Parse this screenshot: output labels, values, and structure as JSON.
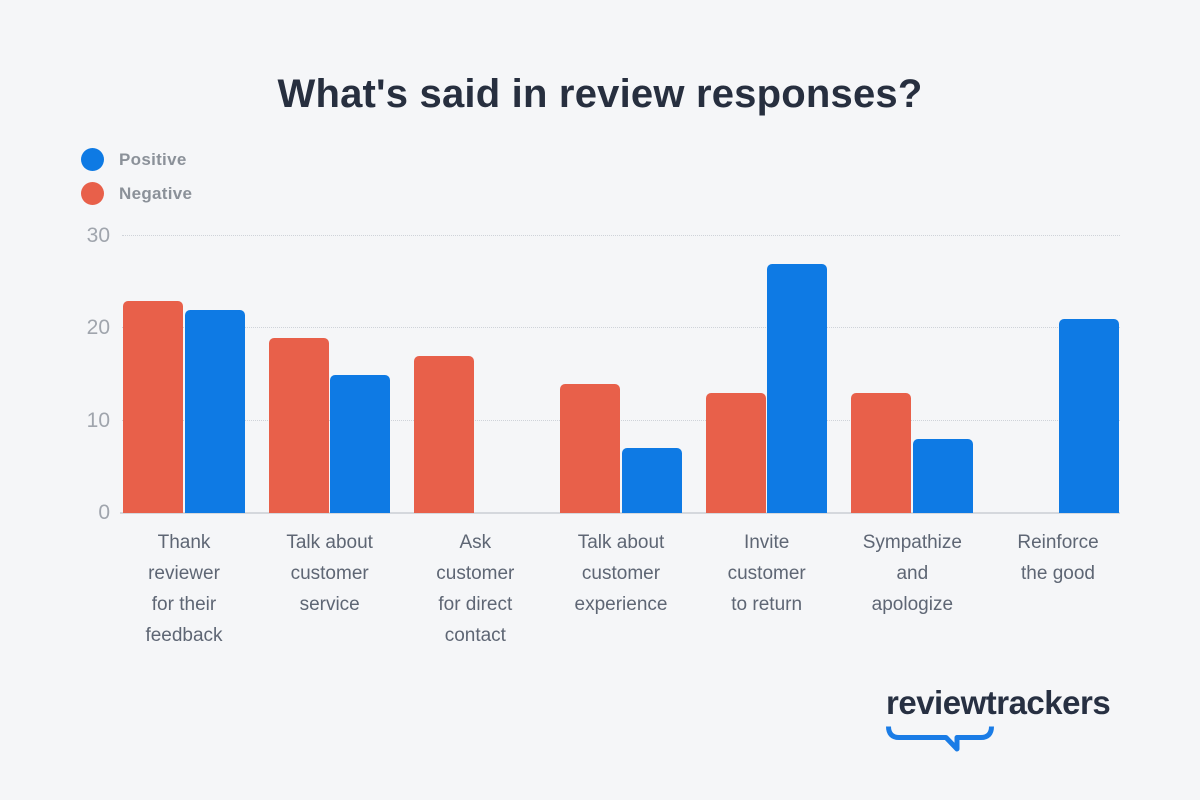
{
  "title": "What's said in review responses?",
  "legend": [
    {
      "name": "positive",
      "label": "Positive",
      "color": "#0e7ae4"
    },
    {
      "name": "negative",
      "label": "Negative",
      "color": "#e8604a"
    }
  ],
  "chart_data": {
    "type": "bar",
    "title": "What's said in review responses?",
    "categories": [
      "Thank reviewer for their feedback",
      "Talk about customer service",
      "Ask customer for direct contact",
      "Talk about customer experience",
      "Invite customer to return",
      "Sympathize and apologize",
      "Reinforce the good"
    ],
    "category_lines": [
      [
        "Thank",
        "reviewer",
        "for their",
        "feedback"
      ],
      [
        "Talk about",
        "customer",
        "service"
      ],
      [
        "Ask",
        "customer",
        "for direct",
        "contact"
      ],
      [
        "Talk about",
        "customer",
        "experience"
      ],
      [
        "Invite",
        "customer",
        "to return"
      ],
      [
        "Sympathize",
        "and",
        "apologize"
      ],
      [
        "Reinforce",
        "the good"
      ]
    ],
    "series": [
      {
        "name": "Negative",
        "color": "#e8604a",
        "values": [
          23,
          19,
          17,
          14,
          13,
          13,
          null
        ]
      },
      {
        "name": "Positive",
        "color": "#0e7ae4",
        "values": [
          22,
          15,
          null,
          7,
          27,
          8,
          21
        ]
      }
    ],
    "xlabel": "",
    "ylabel": "",
    "yticks": [
      0,
      10,
      20,
      30
    ],
    "ylim": [
      0,
      30
    ],
    "grid": "horizontal-dotted",
    "legend_position": "top-left",
    "bar_order_in_group": [
      "Negative",
      "Positive"
    ]
  },
  "colors": {
    "background": "#f5f6f8",
    "title_text": "#272f3f",
    "axis_tick_text": "#a0a5ad",
    "category_text": "#5e6674",
    "legend_text": "#8b9199",
    "gridline": "#cfd3d9",
    "baseline": "#d5d8dd",
    "logo_accent": "#1a7ce6"
  },
  "branding": {
    "logo_text": "reviewtrackers"
  }
}
